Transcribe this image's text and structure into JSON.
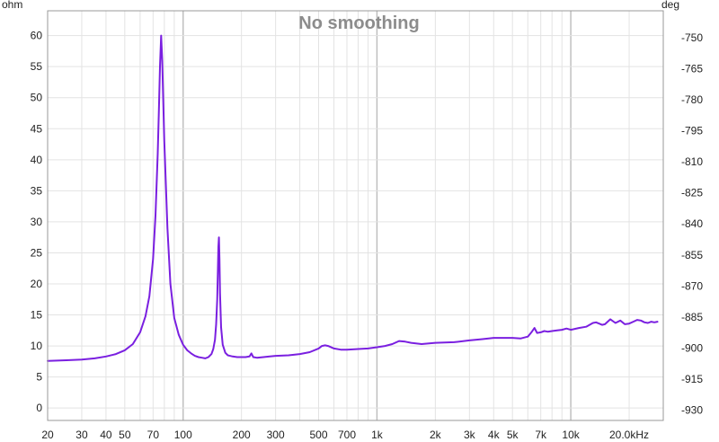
{
  "chart_data": {
    "type": "line",
    "title": "No smoothing",
    "x_scale": "log",
    "xlim": [
      20,
      30000
    ],
    "ylim": [
      -2,
      64
    ],
    "y2lim": [
      -935,
      -737
    ],
    "left_unit": "ohm",
    "right_unit": "deg",
    "grid": true,
    "x_ticks": [
      {
        "value": 20,
        "label": "20"
      },
      {
        "value": 30,
        "label": "30"
      },
      {
        "value": 40,
        "label": "40"
      },
      {
        "value": 50,
        "label": "50"
      },
      {
        "value": 70,
        "label": "70"
      },
      {
        "value": 100,
        "label": "100"
      },
      {
        "value": 200,
        "label": "200"
      },
      {
        "value": 300,
        "label": "300"
      },
      {
        "value": 500,
        "label": "500"
      },
      {
        "value": 700,
        "label": "700"
      },
      {
        "value": 1000,
        "label": "1k"
      },
      {
        "value": 2000,
        "label": "2k"
      },
      {
        "value": 3000,
        "label": "3k"
      },
      {
        "value": 4000,
        "label": "4k"
      },
      {
        "value": 5000,
        "label": "5k"
      },
      {
        "value": 7000,
        "label": "7k"
      },
      {
        "value": 10000,
        "label": "10k"
      },
      {
        "value": 20000,
        "label": "20.0kHz"
      }
    ],
    "y_ticks": [
      0,
      5,
      10,
      15,
      20,
      25,
      30,
      35,
      40,
      45,
      50,
      55,
      60
    ],
    "y2_ticks": [
      -930,
      -915,
      -900,
      -885,
      -870,
      -855,
      -840,
      -825,
      -810,
      -795,
      -780,
      -765,
      -750
    ],
    "colors": {
      "line": "#7a1fe0",
      "grid_minor": "#e3e3e3",
      "grid_major": "#bcbcbc",
      "axis": "#999999",
      "title": "#8c8c8c"
    },
    "series": [
      {
        "x": [
          20,
          25,
          30,
          35,
          40,
          45,
          50,
          55,
          60,
          64,
          67,
          70,
          72,
          74,
          75,
          76,
          77,
          78,
          80,
          83,
          86,
          90,
          95,
          100,
          105,
          110,
          115,
          120,
          125,
          130,
          135,
          140,
          143,
          146,
          148,
          150,
          151,
          152,
          153,
          154,
          155,
          157,
          160,
          165,
          170,
          180,
          190,
          200,
          210,
          220,
          225,
          230,
          240,
          260,
          280,
          300,
          350,
          400,
          450,
          500,
          520,
          540,
          560,
          600,
          650,
          700,
          800,
          900,
          1000,
          1100,
          1200,
          1300,
          1400,
          1500,
          1700,
          2000,
          2500,
          3000,
          3500,
          4000,
          4500,
          5000,
          5500,
          6000,
          6300,
          6500,
          6700,
          7000,
          7300,
          7600,
          8000,
          8500,
          9000,
          9500,
          10000,
          11000,
          12000,
          13000,
          13500,
          14000,
          14500,
          15000,
          15500,
          16000,
          17000,
          18000,
          19000,
          20000,
          21000,
          22000,
          23000,
          24000,
          25000,
          26000,
          27000,
          28000
        ],
        "y": [
          7.6,
          7.7,
          7.8,
          8.0,
          8.3,
          8.7,
          9.3,
          10.3,
          12.2,
          14.8,
          18.0,
          24.0,
          31.0,
          41.0,
          48.0,
          55.0,
          60.0,
          56.0,
          43.0,
          29.0,
          20.0,
          14.5,
          11.8,
          10.2,
          9.3,
          8.8,
          8.4,
          8.2,
          8.1,
          8.0,
          8.2,
          8.7,
          9.5,
          11.0,
          13.5,
          17.5,
          22.0,
          26.0,
          27.5,
          24.0,
          18.5,
          13.0,
          10.2,
          8.9,
          8.5,
          8.3,
          8.2,
          8.2,
          8.2,
          8.3,
          8.8,
          8.2,
          8.1,
          8.2,
          8.3,
          8.4,
          8.5,
          8.7,
          9.0,
          9.6,
          10.0,
          10.1,
          10.0,
          9.6,
          9.4,
          9.4,
          9.5,
          9.6,
          9.8,
          10.0,
          10.3,
          10.8,
          10.7,
          10.5,
          10.3,
          10.5,
          10.6,
          10.9,
          11.1,
          11.3,
          11.3,
          11.3,
          11.2,
          11.5,
          12.3,
          12.9,
          12.1,
          12.2,
          12.4,
          12.3,
          12.4,
          12.5,
          12.6,
          12.8,
          12.6,
          12.9,
          13.1,
          13.7,
          13.8,
          13.6,
          13.4,
          13.5,
          13.9,
          14.3,
          13.7,
          14.1,
          13.5,
          13.6,
          13.9,
          14.2,
          14.1,
          13.8,
          13.7,
          13.9,
          13.8,
          13.9
        ]
      }
    ]
  }
}
